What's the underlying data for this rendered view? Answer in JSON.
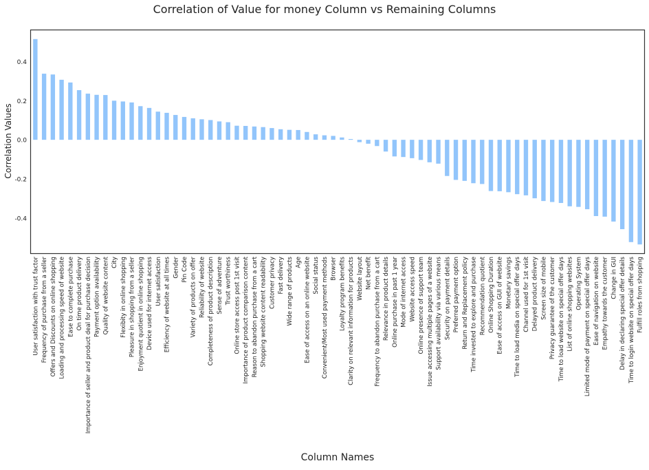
{
  "chart_data": {
    "type": "bar",
    "title": "Correlation of Value for money Column vs Remaining Columns",
    "xlabel": "Column Names",
    "ylabel": "Correlation Values",
    "ylim": [
      -0.58,
      0.56
    ],
    "yticks": [
      0.4,
      0.2,
      0.0,
      -0.2,
      -0.4
    ],
    "grid": false,
    "bar_color": "#92c5fb",
    "categories": [
      "User satisfaction with trust factor",
      "Frequency of purchase from a seller",
      "Offers and Discounts on online shopping",
      "Loading and processing speed of website",
      "Ease to complete purchase",
      "On time product delivery",
      "Importance of seller and product deal for purchase decision",
      "Payment option availability",
      "Quality of website content",
      "City",
      "Flexibity in online shopping",
      "Pleasure in shopping from a seller",
      "Enjoyment quotient in online shopping",
      "Device used for internet access",
      "User satisfaction",
      "Efficiency of website at all times",
      "Gender",
      "Pin Code",
      "Variety of products on offer",
      "Reliability of website",
      "Completeness of product description",
      "Sense of adventure",
      "Trust worthiness",
      "Online store access post 1st visit",
      "Importance of product comparison content",
      "Reason to abandon purchase from a cart",
      "Shopping website content readability",
      "Customer privacy",
      "Fast delivery",
      "Wide range of products",
      "Age",
      "Ease of access on an online website",
      "Social status",
      "Convenient/Most used payment methods",
      "Browser",
      "Loyalty program benefits",
      "Clarity on relevant information for products",
      "Website layout",
      "Net benefit",
      "Frequency to abandon purchase from a cart",
      "Relevance in product details",
      "Online purchase in past 1 year",
      "Mode of internet access",
      "Website access speed",
      "Online presence of support team",
      "Issue accessing multiple pages of a website",
      "Support availability via various means",
      "Security on payment details",
      "Preferred payment option",
      "Return and Replacement policy",
      "Time invested to explore and purchase",
      "Recommendation quotient",
      "Online Shopping Duration",
      "Ease of access on GUI of website",
      "Monetary savings",
      "Time to load media on special offer days",
      "Channel used for 1st visit",
      "Delayed product delivery",
      "Screen size of mobile",
      "Privacy guarantee of the customer",
      "Time to load website on special offer days",
      "List of online shopping websites",
      "Operating System",
      "Limited mode of payment on special offer days",
      "Ease of navigation on website",
      "Empathy towards the customer",
      "Change in GUI",
      "Delay in declaring special offer details",
      "Time to login website on special offer days",
      "Fulfill roles from shopping"
    ],
    "values": [
      0.515,
      0.338,
      0.334,
      0.307,
      0.293,
      0.254,
      0.236,
      0.23,
      0.229,
      0.2,
      0.196,
      0.191,
      0.172,
      0.163,
      0.144,
      0.138,
      0.127,
      0.117,
      0.11,
      0.105,
      0.101,
      0.094,
      0.09,
      0.072,
      0.071,
      0.068,
      0.065,
      0.06,
      0.054,
      0.051,
      0.05,
      0.04,
      0.028,
      0.023,
      0.02,
      0.012,
      0.004,
      -0.012,
      -0.02,
      -0.032,
      -0.06,
      -0.085,
      -0.088,
      -0.094,
      -0.103,
      -0.115,
      -0.122,
      -0.185,
      -0.205,
      -0.21,
      -0.222,
      -0.226,
      -0.262,
      -0.263,
      -0.268,
      -0.278,
      -0.284,
      -0.299,
      -0.313,
      -0.318,
      -0.323,
      -0.34,
      -0.343,
      -0.355,
      -0.39,
      -0.393,
      -0.418,
      -0.457,
      -0.523,
      -0.535
    ]
  }
}
